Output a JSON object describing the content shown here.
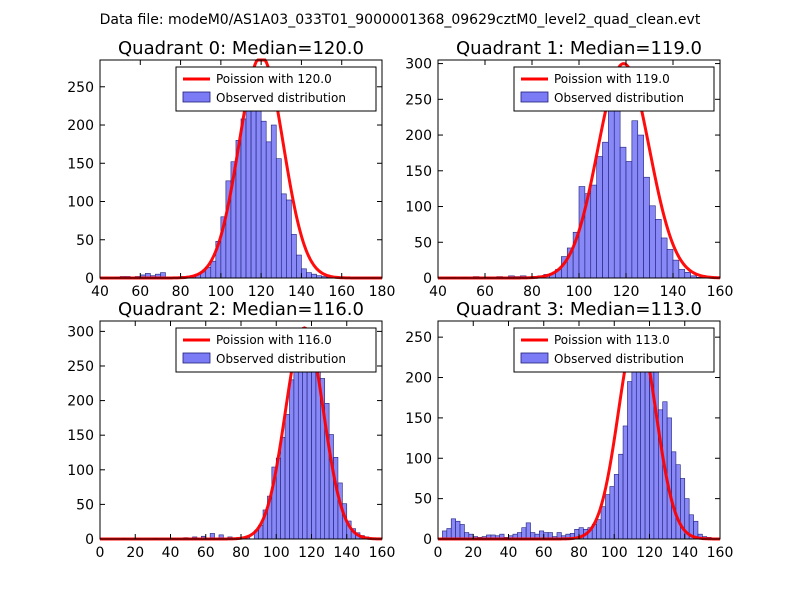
{
  "figure": {
    "suptitle": "Data file: modeM0/AS1A03_033T01_9000001368_09629cztM0_level2_quad_clean.evt",
    "colors": {
      "poisson": "#ff0000",
      "hist_fill": "#7b7bf5",
      "hist_edge": "#1f1f7a",
      "axes": "#000000",
      "legend_edge": "#000000"
    }
  },
  "chart_data": [
    {
      "type": "bar",
      "title": "Quadrant 0: Median=120.0",
      "xlim": [
        40,
        180
      ],
      "ylim": [
        0,
        285
      ],
      "xticks": [
        "40",
        "60",
        "80",
        "100",
        "120",
        "140",
        "160",
        "180"
      ],
      "xtick_values": [
        40,
        60,
        80,
        100,
        120,
        140,
        160,
        180
      ],
      "yticks": [
        "0",
        "50",
        "100",
        "150",
        "200",
        "250"
      ],
      "ytick_values": [
        0,
        50,
        100,
        150,
        200,
        250
      ],
      "legend": [
        "Poission with 120.0",
        "Observed distribution"
      ],
      "legend_loc": "upper right",
      "bin_width": 2.5,
      "hist_x": [
        47.5,
        50,
        52.5,
        55,
        57.5,
        60,
        62.5,
        65,
        67.5,
        70,
        72.5,
        75,
        77.5,
        80,
        82.5,
        85,
        87.5,
        90,
        92.5,
        95,
        97.5,
        100,
        102.5,
        105,
        107.5,
        110,
        112.5,
        115,
        117.5,
        120,
        122.5,
        125,
        127.5,
        130,
        132.5,
        135,
        137.5,
        140,
        142.5,
        145,
        147.5,
        150,
        152.5
      ],
      "hist_y": [
        1,
        2,
        2,
        1,
        2,
        4,
        6,
        3,
        5,
        7,
        1,
        1,
        1,
        2,
        2,
        3,
        5,
        8,
        14,
        22,
        48,
        80,
        127,
        152,
        180,
        208,
        218,
        258,
        254,
        205,
        178,
        200,
        156,
        110,
        102,
        57,
        30,
        12,
        7,
        5,
        3,
        2,
        1
      ],
      "poisson_mean": 120.0,
      "poisson_peak": 290
    },
    {
      "type": "bar",
      "title": "Quadrant 1: Median=119.0",
      "xlim": [
        40,
        160
      ],
      "ylim": [
        0,
        305
      ],
      "xticks": [
        "40",
        "60",
        "80",
        "100",
        "120",
        "140",
        "160"
      ],
      "xtick_values": [
        40,
        60,
        80,
        100,
        120,
        140,
        160
      ],
      "yticks": [
        "0",
        "50",
        "100",
        "150",
        "200",
        "250",
        "300"
      ],
      "ytick_values": [
        0,
        50,
        100,
        150,
        200,
        250,
        300
      ],
      "legend": [
        "Poission with 119.0",
        "Observed distribution"
      ],
      "legend_loc": "upper right",
      "bin_width": 2.5,
      "hist_x": [
        45,
        50,
        55,
        60,
        65,
        70,
        72.5,
        75,
        77.5,
        80,
        82.5,
        85,
        87.5,
        90,
        92.5,
        95,
        97.5,
        100,
        102.5,
        105,
        107.5,
        110,
        112.5,
        115,
        117.5,
        120,
        122.5,
        125,
        127.5,
        130,
        132.5,
        135,
        137.5,
        140,
        142.5,
        145,
        147.5,
        150
      ],
      "hist_y": [
        1,
        1,
        2,
        1,
        2,
        3,
        2,
        3,
        1,
        2,
        3,
        5,
        6,
        12,
        30,
        42,
        64,
        128,
        118,
        130,
        170,
        190,
        243,
        291,
        183,
        163,
        220,
        200,
        141,
        101,
        82,
        56,
        40,
        25,
        12,
        8,
        3,
        1
      ],
      "poisson_mean": 119.0,
      "poisson_peak": 300
    },
    {
      "type": "bar",
      "title": "Quadrant 2: Median=116.0",
      "xlim": [
        0,
        160
      ],
      "ylim": [
        0,
        315
      ],
      "xticks": [
        "0",
        "20",
        "40",
        "60",
        "80",
        "100",
        "120",
        "140",
        "160"
      ],
      "xtick_values": [
        0,
        20,
        40,
        60,
        80,
        100,
        120,
        140,
        160
      ],
      "yticks": [
        "0",
        "50",
        "100",
        "150",
        "200",
        "250",
        "300"
      ],
      "ytick_values": [
        0,
        50,
        100,
        150,
        200,
        250,
        300
      ],
      "legend": [
        "Poission with 116.0",
        "Observed distribution"
      ],
      "legend_loc": "upper right",
      "bin_width": 2.5,
      "hist_x": [
        12.5,
        20,
        30,
        40,
        47.5,
        52.5,
        57.5,
        62.5,
        67.5,
        72.5,
        77.5,
        82.5,
        87.5,
        90,
        92.5,
        95,
        97.5,
        100,
        102.5,
        105,
        107.5,
        110,
        112.5,
        115,
        117.5,
        120,
        122.5,
        125,
        127.5,
        130,
        132.5,
        135,
        137.5,
        140,
        142.5,
        145,
        147.5,
        150
      ],
      "hist_y": [
        1,
        1,
        1,
        1,
        2,
        3,
        4,
        8,
        6,
        3,
        2,
        3,
        12,
        20,
        42,
        62,
        104,
        117,
        147,
        180,
        230,
        270,
        285,
        296,
        283,
        305,
        252,
        232,
        196,
        151,
        118,
        81,
        51,
        26,
        15,
        9,
        5,
        3
      ],
      "poisson_mean": 116.0,
      "poisson_peak": 305
    },
    {
      "type": "bar",
      "title": "Quadrant 3: Median=113.0",
      "xlim": [
        0,
        160
      ],
      "ylim": [
        0,
        270
      ],
      "xticks": [
        "0",
        "20",
        "40",
        "60",
        "80",
        "100",
        "120",
        "140",
        "160"
      ],
      "xtick_values": [
        0,
        20,
        40,
        60,
        80,
        100,
        120,
        140,
        160
      ],
      "yticks": [
        "0",
        "50",
        "100",
        "150",
        "200",
        "250"
      ],
      "ytick_values": [
        0,
        50,
        100,
        150,
        200,
        250
      ],
      "legend": [
        "Poission with 113.0",
        "Observed distribution"
      ],
      "legend_loc": "upper right",
      "bin_width": 2.5,
      "hist_x": [
        2.5,
        5,
        7.5,
        10,
        12.5,
        15,
        17.5,
        20,
        22.5,
        25,
        27.5,
        30,
        32.5,
        35,
        37.5,
        40,
        42.5,
        45,
        47.5,
        50,
        52.5,
        55,
        57.5,
        60,
        62.5,
        65,
        67.5,
        70,
        72.5,
        75,
        77.5,
        80,
        82.5,
        85,
        87.5,
        90,
        92.5,
        95,
        97.5,
        100,
        102.5,
        105,
        107.5,
        110,
        112.5,
        115,
        117.5,
        120,
        122.5,
        125,
        127.5,
        130,
        132.5,
        135,
        137.5,
        140,
        142.5,
        145,
        147.5,
        150,
        152.5
      ],
      "hist_y": [
        10,
        13,
        25,
        22,
        18,
        8,
        6,
        3,
        2,
        3,
        5,
        5,
        4,
        6,
        2,
        4,
        6,
        8,
        14,
        20,
        8,
        6,
        10,
        8,
        8,
        3,
        8,
        4,
        6,
        7,
        12,
        14,
        12,
        14,
        18,
        24,
        40,
        55,
        65,
        80,
        105,
        140,
        195,
        222,
        238,
        255,
        210,
        222,
        210,
        160,
        170,
        150,
        108,
        92,
        75,
        50,
        30,
        22,
        6,
        3,
        2
      ],
      "poisson_mean": 113.0,
      "poisson_peak": 260
    }
  ]
}
